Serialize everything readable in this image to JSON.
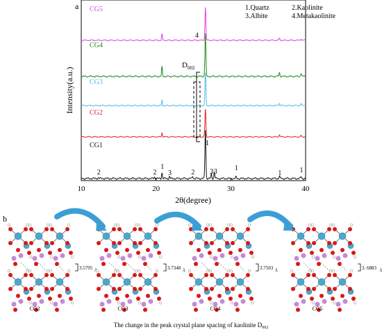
{
  "panel_a": "a",
  "panel_b": "b",
  "chart_data": {
    "type": "line",
    "title": "",
    "xlabel": "2θ(degree)",
    "ylabel": "Intensity(a.u.)",
    "xlim": [
      10,
      40
    ],
    "xticks": [
      "10",
      "20",
      "30",
      "40"
    ],
    "grid": false,
    "legend_position": "top-right",
    "legend": [
      "1.Quartz",
      "2.Kaolinite",
      "3.Albite",
      "4.Metakaolinite"
    ],
    "series": [
      {
        "name": "CG5",
        "color": "#e040e0",
        "peaks": [
          {
            "x": 20.8,
            "y": 0.18
          },
          {
            "x": 26.6,
            "y": 1.0
          },
          {
            "x": 36.5,
            "y": 0.06
          },
          {
            "x": 39.4,
            "y": 0.05
          }
        ]
      },
      {
        "name": "CG4",
        "color": "#1a8a1a",
        "peaks": [
          {
            "x": 20.8,
            "y": 0.22
          },
          {
            "x": 26.6,
            "y": 1.0
          },
          {
            "x": 36.5,
            "y": 0.1
          },
          {
            "x": 39.4,
            "y": 0.07
          }
        ]
      },
      {
        "name": "CG3",
        "color": "#4fb7ee",
        "peaks": [
          {
            "x": 20.8,
            "y": 0.15
          },
          {
            "x": 26.6,
            "y": 1.0
          },
          {
            "x": 36.5,
            "y": 0.08
          },
          {
            "x": 39.4,
            "y": 0.06
          }
        ]
      },
      {
        "name": "CG2",
        "color": "#e02020",
        "peaks": [
          {
            "x": 20.8,
            "y": 0.14
          },
          {
            "x": 26.6,
            "y": 1.0
          },
          {
            "x": 36.5,
            "y": 0.08
          },
          {
            "x": 39.4,
            "y": 0.05
          }
        ]
      },
      {
        "name": "CG1",
        "color": "#111111",
        "peaks": [
          {
            "x": 12.3,
            "y": 0.02
          },
          {
            "x": 19.8,
            "y": 0.03
          },
          {
            "x": 20.8,
            "y": 0.12
          },
          {
            "x": 21.8,
            "y": 0.04
          },
          {
            "x": 24.9,
            "y": 0.05
          },
          {
            "x": 26.6,
            "y": 1.0
          },
          {
            "x": 27.4,
            "y": 0.1
          },
          {
            "x": 27.8,
            "y": 0.14
          },
          {
            "x": 30.7,
            "y": 0.03
          },
          {
            "x": 36.5,
            "y": 0.05
          },
          {
            "x": 39.4,
            "y": 0.04
          }
        ]
      }
    ],
    "annotations": [
      {
        "text": "D",
        "sub": "002"
      },
      {
        "text": "4"
      },
      {
        "text": "1",
        "x": 26.7
      },
      {
        "text": "2",
        "x": 12.3
      },
      {
        "text": "2",
        "x": 19.8
      },
      {
        "text": "1",
        "x": 20.8
      },
      {
        "text": "3",
        "x": 21.8
      },
      {
        "text": "2",
        "x": 24.9
      },
      {
        "text": "3",
        "x": 27.4
      },
      {
        "text": "3",
        "x": 27.9
      },
      {
        "text": "1",
        "x": 30.7
      },
      {
        "text": "1",
        "x": 36.5
      },
      {
        "text": "1",
        "x": 39.4
      }
    ]
  },
  "structures": [
    {
      "label": "CG2",
      "spacing": "3.5795",
      "unit": "Å"
    },
    {
      "label": "CG3",
      "spacing": "3.7348",
      "unit": "Å"
    },
    {
      "label": "CG4",
      "spacing": "3.7503",
      "unit": "Å"
    },
    {
      "label": "CG5",
      "spacing": "3. 6883",
      "unit": "Å"
    }
  ],
  "colors": {
    "si": "#4aa8d0",
    "al": "#c58ad6",
    "o": "#d81818",
    "h": "#ffffff",
    "arrow": "#3b9fd6"
  },
  "caption": "The change in the peak crystal plane spacing of kaolinite D",
  "caption_sub": "002"
}
